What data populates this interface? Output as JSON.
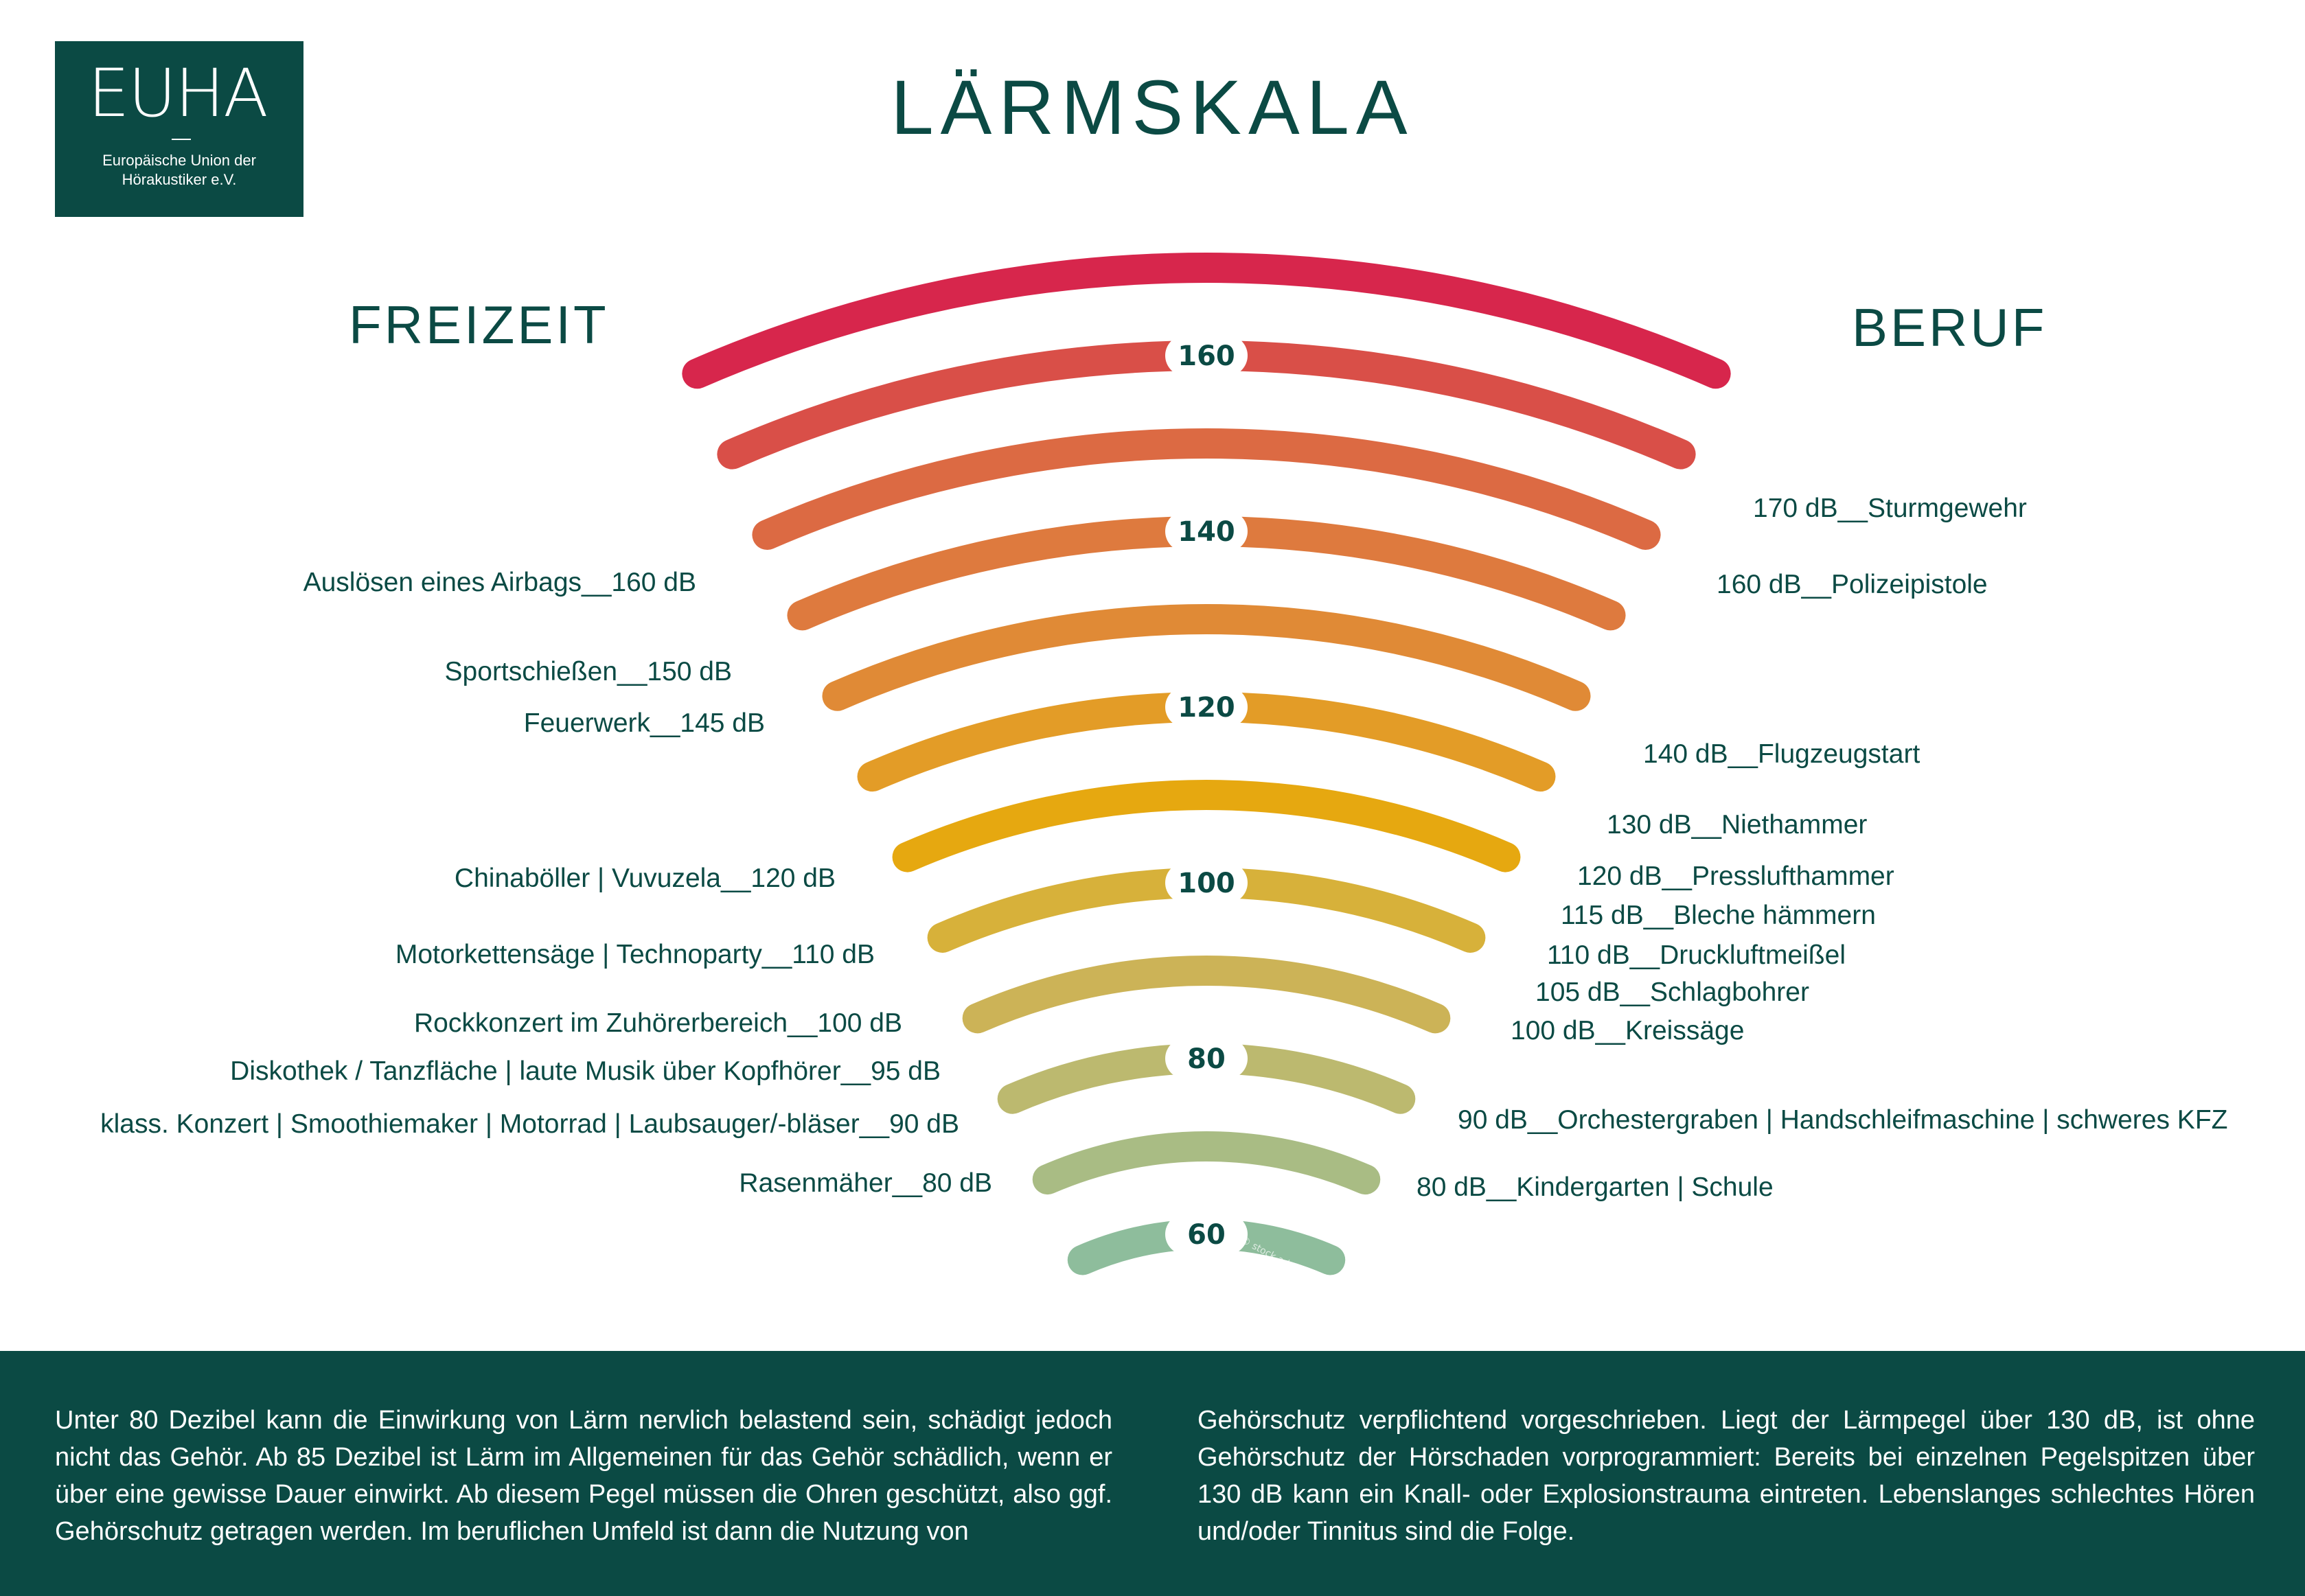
{
  "logo": {
    "brand": "EUHA",
    "subtitle_line1": "Europäische Union der",
    "subtitle_line2": "Hörakustiker e.V."
  },
  "title": "LÄRMSKALA",
  "left_heading": "FREIZEIT",
  "right_heading": "BERUF",
  "scale": {
    "marks": [
      "160",
      "140",
      "120",
      "100",
      "80",
      "60"
    ],
    "arc_colors": [
      "#d7264c",
      "#d94f48",
      "#dc6a43",
      "#de7a3e",
      "#e08a36",
      "#e39c27",
      "#e6a810",
      "#d7b13a",
      "#ccb357",
      "#bcb96f",
      "#a9bc84",
      "#8ebd9c"
    ]
  },
  "leisure": [
    "Auslösen eines Airbags__160 dB",
    "Sportschießen__150 dB",
    "Feuerwerk__145 dB",
    "Chinaböller   |  Vuvuzela__120 dB",
    "Motorkettensäge   |   Technoparty__110 dB",
    "Rockkonzert im Zuhörerbereich__100 dB",
    "Diskothek / Tanzfläche   |   laute Musik über Kopfhörer__95 dB",
    "klass. Konzert   |   Smoothiemaker   |   Motorrad   |   Laubsauger/-bläser__90 dB",
    "Rasenmäher__80 dB"
  ],
  "work": [
    "170 dB__Sturmgewehr",
    "160 dB__Polizeipistole",
    "140 dB__Flugzeugstart",
    "130 dB__Niethammer",
    "120 dB__Presslufthammer",
    "115 dB__Bleche hämmern",
    "110 dB__Druckluftmeißel",
    "105 dB__Schlagbohrer",
    "100 dB__Kreissäge",
    "90 dB__Orchestergraben   |   Handschleifmaschine   |   schweres KFZ",
    "80 dB__Kindergarten   |   Schule"
  ],
  "watermark": "© stock.adobe.com",
  "footer": {
    "left": "Unter 80 Dezibel kann die Einwirkung von Lärm nervlich belastend sein, schädigt jedoch nicht das Gehör. Ab 85 Dezibel ist Lärm im Allgemeinen für das Gehör schädlich, wenn er über eine gewisse Dauer einwirkt. Ab diesem Pegel müssen die Ohren geschützt, also ggf. Gehörschutz getragen werden. Im beruflichen Umfeld ist dann die Nutzung von",
    "right": "Gehörschutz verpflichtend vorgeschrieben. Liegt der Lärmpegel über 130 dB, ist ohne Gehörschutz der Hörschaden vorprogrammiert: Bereits bei einzelnen Pegelspitzen über 130 dB kann ein Knall- oder Explosionstrauma eintreten. Lebenslanges schlechtes Hören und/oder Tinnitus sind die Folge."
  }
}
